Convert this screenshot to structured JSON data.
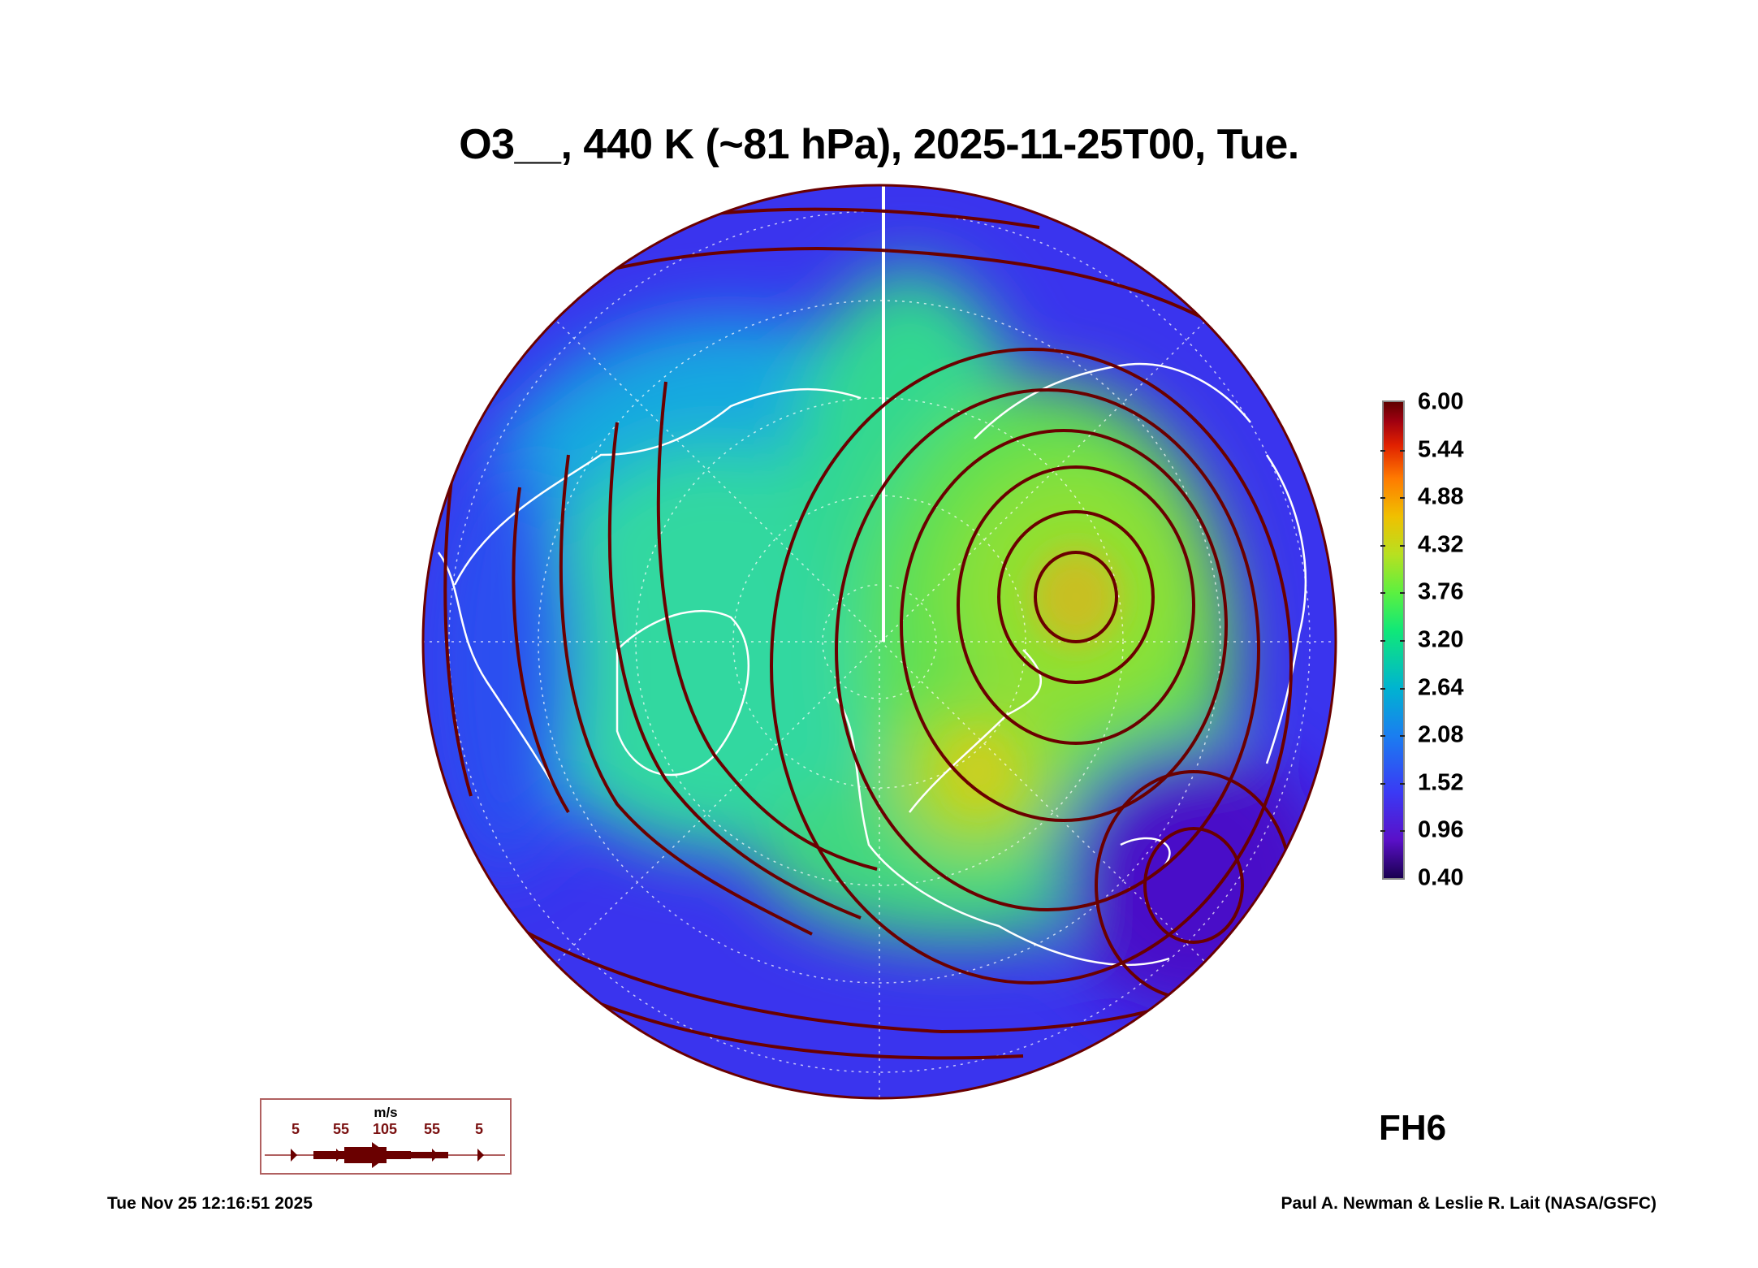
{
  "title": "O3__, 440 K (~81 hPa), 2025-11-25T00, Tue.",
  "colorbar": {
    "labels": [
      "6.00",
      "5.44",
      "4.88",
      "4.32",
      "3.76",
      "3.20",
      "2.64",
      "2.08",
      "1.52",
      "0.96",
      "0.40"
    ],
    "range": [
      0.4,
      6.0
    ]
  },
  "wind_legend": {
    "unit": "m/s",
    "speeds": [
      "5",
      "55",
      "105",
      "55",
      "5"
    ],
    "color": "#6a0000"
  },
  "forecast_label": "FH6",
  "footer": {
    "timestamp": "Tue Nov 25 12:16:51 2025",
    "credit": "Paul A. Newman & Leslie R. Lait (NASA/GSFC)"
  }
}
